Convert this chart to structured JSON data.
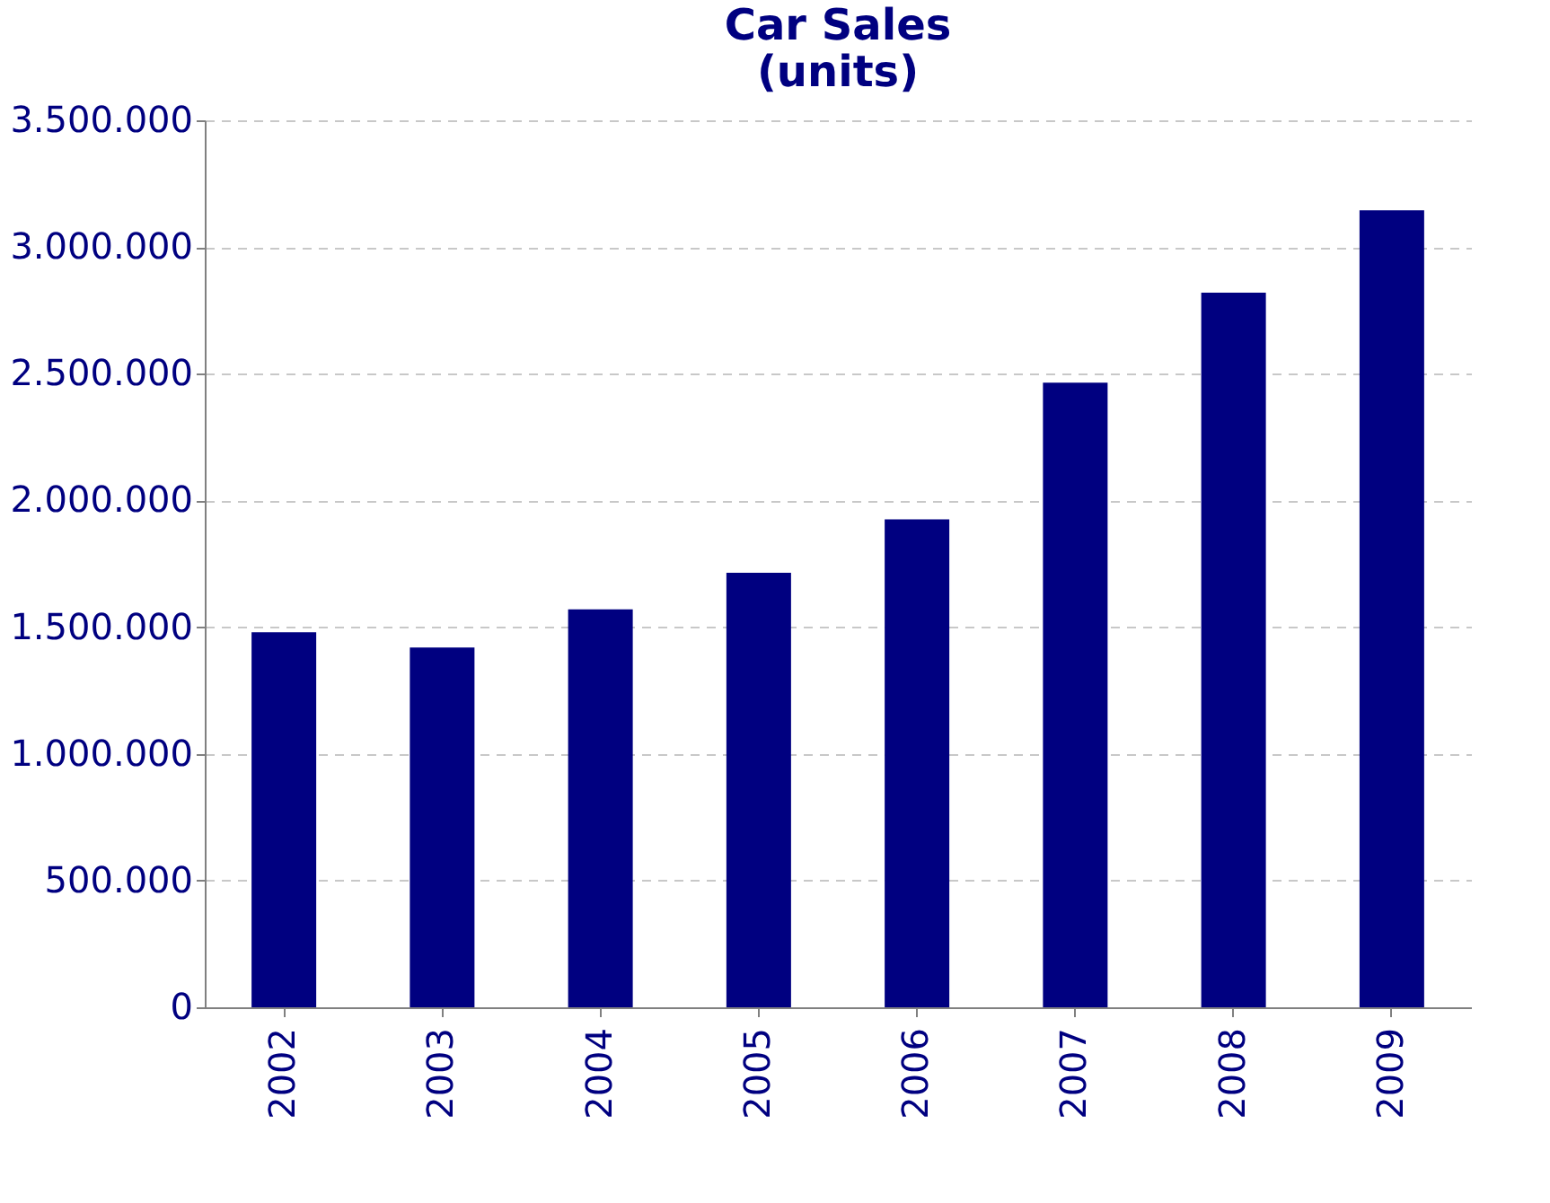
{
  "chart_data": {
    "type": "bar",
    "title": [
      "Car Sales",
      "(units)"
    ],
    "categories": [
      "2002",
      "2003",
      "2004",
      "2005",
      "2006",
      "2007",
      "2008",
      "2009"
    ],
    "values": [
      1480000,
      1420000,
      1570000,
      1715000,
      1925000,
      2465000,
      2820000,
      3145000
    ],
    "color": "#000080",
    "ylim": [
      0,
      3500000
    ],
    "yticks": [
      0,
      {
        "value": 500000,
        "label": "500.000"
      },
      {
        "value": 1000000,
        "label": "1.000.000"
      },
      {
        "value": 1500000,
        "label": "1.500.000"
      },
      {
        "value": 2000000,
        "label": "2.000.000"
      },
      {
        "value": 2500000,
        "label": "2.500.000"
      },
      {
        "value": 3000000,
        "label": "3.000.000"
      },
      {
        "value": 3500000,
        "label": "3.500.000"
      }
    ],
    "grid": "y"
  }
}
